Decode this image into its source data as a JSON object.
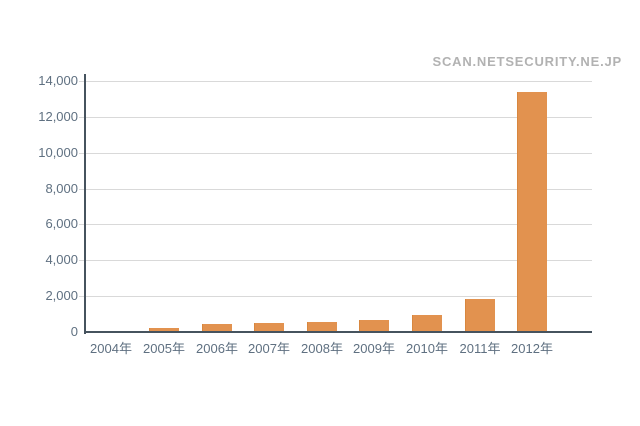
{
  "watermark": "SCAN.NETSECURITY.NE.JP",
  "colors": {
    "background": "#ffffff",
    "bar": "#e2924f",
    "bar_edge": "#d8873f",
    "axis": "#46535e",
    "grid": "#d9d9d9",
    "tick_label": "#5f7081",
    "watermark": "#b2b2b2"
  },
  "chart_data": {
    "type": "bar",
    "title": "",
    "xlabel": "",
    "ylabel": "",
    "categories": [
      "2004年",
      "2005年",
      "2006年",
      "2007年",
      "2008年",
      "2009年",
      "2010年",
      "2011年",
      "2012年"
    ],
    "values": [
      40,
      230,
      450,
      520,
      560,
      690,
      950,
      1850,
      13400
    ],
    "ylim": [
      0,
      14000
    ],
    "ytick_step": 2000,
    "ytick_values": [
      0,
      2000,
      4000,
      6000,
      8000,
      10000,
      12000,
      14000
    ],
    "ytick_labels": [
      "0",
      "2,000",
      "4,000",
      "6,000",
      "8,000",
      "10,000",
      "12,000",
      "14,000"
    ],
    "grid": true,
    "legend": false,
    "bar_color_hex": "#e2924f"
  }
}
